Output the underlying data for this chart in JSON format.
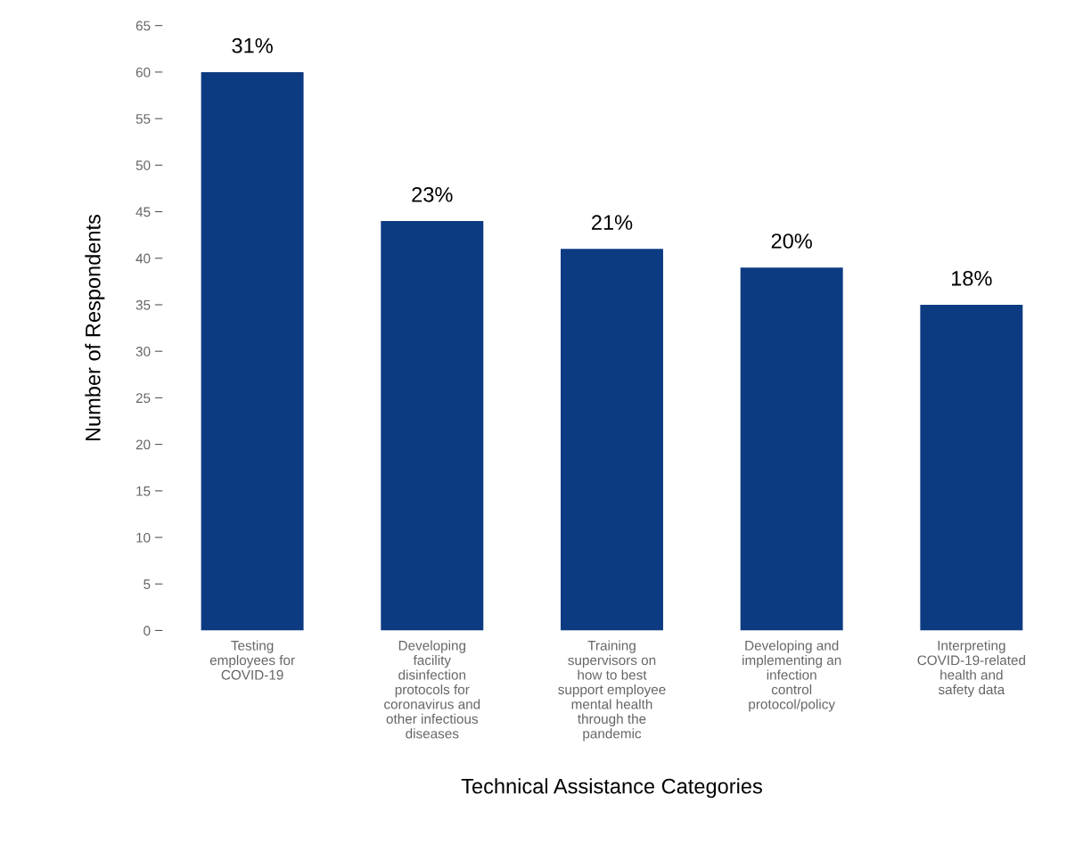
{
  "chart_data": {
    "type": "bar",
    "xlabel": "Technical Assistance Categories",
    "ylabel": "Number of Respondents",
    "categories": [
      "Testing\nemployees for\nCOVID-19",
      "Developing\nfacility\ndisinfection\nprotocols for\ncoronavirus and\nother infectious\ndiseases",
      "Training\nsupervisors on\nhow to best\nsupport employee\nmental health\nthrough the\npandemic",
      "Developing and\nimplementing an\ninfection\ncontrol\nprotocol/policy",
      "Interpreting\nCOVID-19-related\nhealth and\nsafety data"
    ],
    "values": [
      60,
      44,
      41,
      39,
      35
    ],
    "annotations": [
      {
        "text": "31%",
        "x": "Testing\nemployees for\nCOVID-19",
        "y": 60
      },
      {
        "text": "23%",
        "x": "Developing\nfacility\ndisinfection\nprotocols for\ncoronavirus and\nother infectious\ndiseases",
        "y": 44
      },
      {
        "text": "21%",
        "x": "Training\nsupervisors on\nhow to best\nsupport employee\nmental health\nthrough the\npandemic",
        "y": 41
      },
      {
        "text": "20%",
        "x": "Developing and\nimplementing an\ninfection\ncontrol\nprotocol/policy",
        "y": 39
      },
      {
        "text": "18%",
        "x": "Interpreting\nCOVID-19-related\nhealth and\nsafety data",
        "y": 35
      }
    ],
    "color": "#0d3b82",
    "ylim": [
      0,
      65
    ],
    "yticks": [
      0,
      5,
      10,
      15,
      20,
      25,
      30,
      35,
      40,
      45,
      50,
      55,
      60,
      65
    ],
    "grid": false,
    "legend": false
  }
}
